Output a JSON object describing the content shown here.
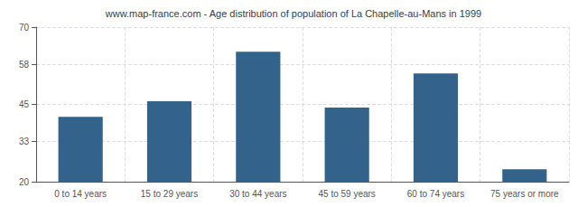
{
  "chart_data": {
    "type": "bar",
    "title": "www.map-france.com - Age distribution of population of La Chapelle-au-Mans in 1999",
    "categories": [
      "0 to 14 years",
      "15 to 29 years",
      "30 to 44 years",
      "45 to 59 years",
      "60 to 74 years",
      "75 years or more"
    ],
    "values": [
      41,
      46,
      62,
      44,
      55,
      24
    ],
    "color": "#33638a",
    "ylim": [
      20,
      70
    ],
    "yticks": [
      20,
      33,
      45,
      58,
      70
    ],
    "grid": true
  }
}
